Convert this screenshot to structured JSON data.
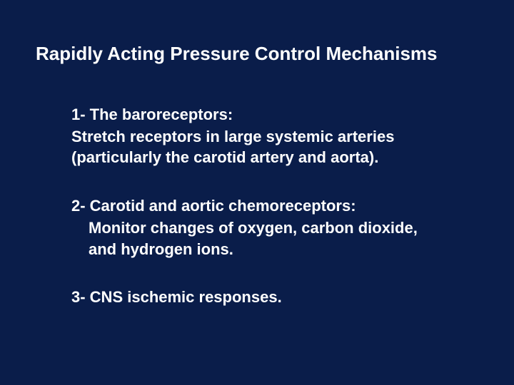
{
  "slide": {
    "background_color": "#0a1d4a",
    "text_color": "#ffffff",
    "title": "Rapidly Acting Pressure Control Mechanisms",
    "title_fontsize": 26,
    "body_fontsize": 22,
    "font_family": "Arial",
    "items": [
      {
        "heading": "1- The baroreceptors:",
        "body": "Stretch receptors in large systemic arteries (particularly the carotid artery and aorta).",
        "indent_body": false
      },
      {
        "heading": "2- Carotid and aortic chemoreceptors:",
        "body": "Monitor changes of oxygen, carbon dioxide, and hydrogen ions.",
        "indent_body": true
      },
      {
        "heading": "3- CNS ischemic responses.",
        "body": "",
        "indent_body": false
      }
    ]
  }
}
